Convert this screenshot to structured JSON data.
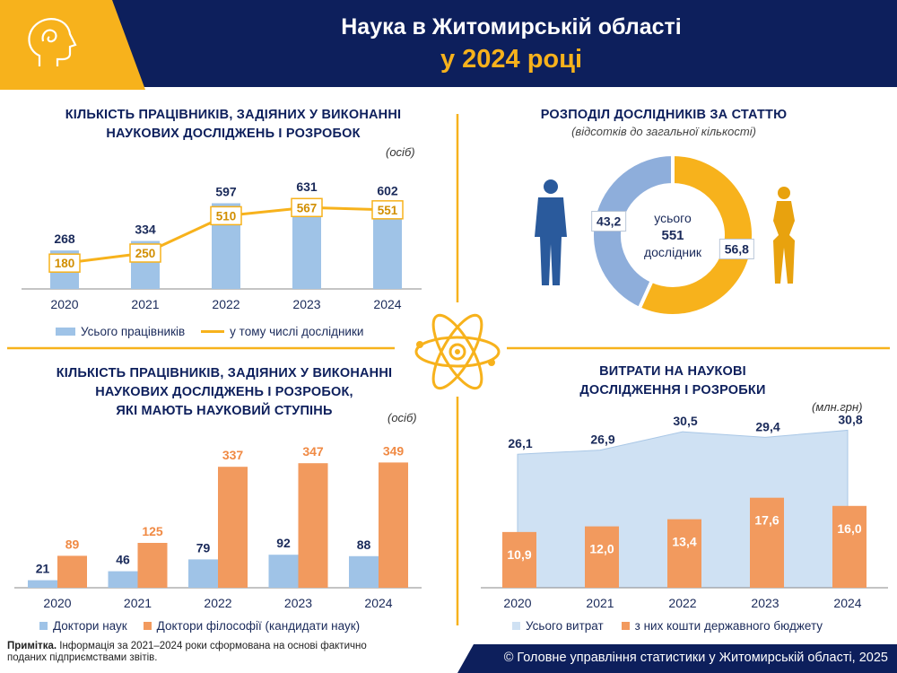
{
  "header": {
    "title": "Наука в Житомирській області",
    "subtitle": "у 2024 році"
  },
  "colors": {
    "navy": "#0d1f5c",
    "gold": "#f7b21c",
    "light_blue": "#9fc3e7",
    "orange": "#f29a5e",
    "male_blue": "#2a5a9c",
    "female_gold": "#e8a20e",
    "donut_blue": "#8eaedb",
    "area_blue": "#cfe1f3"
  },
  "panels": {
    "workers": {
      "title": [
        "КІЛЬКІСТЬ ПРАЦІВНИКІВ, ЗАДІЯНИХ У ВИКОНАННІ",
        "НАУКОВИХ ДОСЛІДЖЕНЬ І РОЗРОБОК"
      ],
      "unit": "(осіб)",
      "legend": [
        "Усього працівників",
        "у тому числі дослідники"
      ]
    },
    "gender": {
      "title": "РОЗПОДІЛ ДОСЛІДНИКІВ ЗА СТАТТЮ",
      "subtitle": "(відсотків до загальної кількості)",
      "center": [
        "усього",
        "551",
        "дослідник"
      ]
    },
    "degree": {
      "title": [
        "КІЛЬКІСТЬ ПРАЦІВНИКІВ, ЗАДІЯНИХ У ВИКОНАННІ",
        "НАУКОВИХ ДОСЛІДЖЕНЬ І РОЗРОБОК,",
        "ЯКІ МАЮТЬ НАУКОВИЙ СТУПІНЬ"
      ],
      "unit": "(осіб)",
      "legend": [
        "Доктори наук",
        "Доктори філософії (кандидати наук)"
      ]
    },
    "expenses": {
      "title": [
        "ВИТРАТИ НА НАУКОВІ",
        "ДОСЛІДЖЕННЯ І РОЗРОБКИ"
      ],
      "unit": "(млн.грн)",
      "legend": [
        "Усього витрат",
        "з них кошти державного бюджету"
      ]
    }
  },
  "chart_data": [
    {
      "type": "bar",
      "categories": [
        "2020",
        "2021",
        "2022",
        "2023",
        "2024"
      ],
      "series": [
        {
          "name": "Усього працівників",
          "type": "bar",
          "values": [
            268,
            334,
            597,
            631,
            602
          ]
        },
        {
          "name": "у тому числі дослідники",
          "type": "line",
          "values": [
            180,
            250,
            510,
            567,
            551
          ]
        }
      ]
    },
    {
      "type": "pie",
      "categories": [
        "male",
        "female"
      ],
      "values": [
        43.2,
        56.8
      ],
      "labels": [
        "43,2",
        "56,8"
      ]
    },
    {
      "type": "bar",
      "categories": [
        "2020",
        "2021",
        "2022",
        "2023",
        "2024"
      ],
      "series": [
        {
          "name": "Доктори наук",
          "values": [
            21,
            46,
            79,
            92,
            88
          ]
        },
        {
          "name": "Доктори філософії (кандидати наук)",
          "values": [
            89,
            125,
            337,
            347,
            349
          ]
        }
      ]
    },
    {
      "type": "area",
      "categories": [
        "2020",
        "2021",
        "2022",
        "2023",
        "2024"
      ],
      "series": [
        {
          "name": "Усього витрат",
          "type": "area",
          "values": [
            26.1,
            26.9,
            30.5,
            29.4,
            30.8
          ],
          "labels": [
            "26,1",
            "26,9",
            "30,5",
            "29,4",
            "30,8"
          ]
        },
        {
          "name": "з них кошти державного бюджету",
          "type": "bar",
          "values": [
            10.9,
            12.0,
            13.4,
            17.6,
            16.0
          ],
          "labels": [
            "10,9",
            "12,0",
            "13,4",
            "17,6",
            "16,0"
          ]
        }
      ]
    }
  ],
  "note": {
    "label": "Примітка.",
    "text": "Інформація за 2021–2024 роки сформована на основі фактично поданих підприємствами звітів."
  },
  "footer": "© Головне управління статистики у Житомирській області, 2025"
}
